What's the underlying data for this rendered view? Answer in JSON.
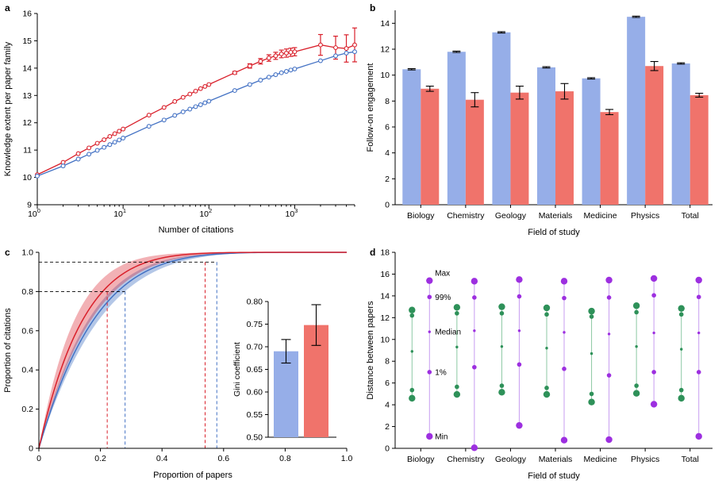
{
  "colors": {
    "red": "#d9202b",
    "blue": "#4472c4",
    "bar_blue": "#96aee8",
    "bar_red": "#f0736b",
    "green": "#2e9159",
    "purple": "#9d2fe0",
    "light_purple": "#c79cf0",
    "light_green": "#8cc9a4"
  },
  "chart_data": [
    {
      "panel": "a",
      "type": "line",
      "title": "",
      "xlabel": "Number of citations",
      "ylabel": "Knowledge extent per paper family",
      "xscale": "log",
      "xlim": [
        1,
        5000
      ],
      "ylim": [
        9,
        16
      ],
      "xticks": [
        1,
        10,
        100,
        1000
      ],
      "xtick_labels": [
        {
          "base": "10",
          "exp": "0"
        },
        {
          "base": "10",
          "exp": "1"
        },
        {
          "base": "10",
          "exp": "2"
        },
        {
          "base": "10",
          "exp": "3"
        }
      ],
      "yticks": [
        9,
        10,
        11,
        12,
        13,
        14,
        15,
        16
      ],
      "series": [
        {
          "name": "red",
          "color": "red",
          "x": [
            1,
            2,
            3,
            4,
            5,
            6,
            7,
            8,
            9,
            10,
            20,
            30,
            40,
            50,
            60,
            70,
            80,
            90,
            100,
            200,
            300,
            400,
            500,
            600,
            700,
            800,
            900,
            1000,
            2000,
            3000,
            4000,
            5000
          ],
          "values": [
            10.1,
            10.55,
            10.87,
            11.08,
            11.25,
            11.38,
            11.5,
            11.6,
            11.69,
            11.77,
            12.28,
            12.56,
            12.78,
            12.93,
            13.05,
            13.16,
            13.25,
            13.33,
            13.4,
            13.83,
            14.08,
            14.25,
            14.37,
            14.45,
            14.52,
            14.55,
            14.58,
            14.6,
            14.85,
            14.75,
            14.72,
            14.85
          ],
          "errors": [
            0,
            0,
            0,
            0,
            0,
            0,
            0,
            0,
            0,
            0,
            0,
            0,
            0,
            0,
            0,
            0,
            0,
            0,
            0,
            0.05,
            0.08,
            0.1,
            0.12,
            0.13,
            0.14,
            0.15,
            0.15,
            0.15,
            0.38,
            0.42,
            0.5,
            0.62
          ]
        },
        {
          "name": "blue",
          "color": "blue",
          "x": [
            1,
            2,
            3,
            4,
            5,
            6,
            7,
            8,
            9,
            10,
            20,
            30,
            40,
            50,
            60,
            70,
            80,
            90,
            100,
            200,
            300,
            400,
            500,
            600,
            700,
            800,
            900,
            1000,
            2000,
            3000,
            4000,
            5000
          ],
          "values": [
            10.05,
            10.42,
            10.67,
            10.85,
            10.99,
            11.1,
            11.2,
            11.29,
            11.37,
            11.44,
            11.87,
            12.1,
            12.27,
            12.4,
            12.5,
            12.59,
            12.66,
            12.73,
            12.79,
            13.18,
            13.4,
            13.56,
            13.67,
            13.76,
            13.83,
            13.88,
            13.93,
            13.97,
            14.27,
            14.45,
            14.55,
            14.6
          ]
        }
      ]
    },
    {
      "panel": "b",
      "type": "bar",
      "title": "",
      "xlabel": "Field of study",
      "ylabel": "Follow-on engagement",
      "ylim": [
        0,
        15
      ],
      "yticks": [
        0,
        2,
        4,
        6,
        8,
        10,
        12,
        14
      ],
      "categories": [
        "Biology",
        "Chemistry",
        "Geology",
        "Materials",
        "Medicine",
        "Physics",
        "Total"
      ],
      "series": [
        {
          "name": "blue",
          "color": "bar_blue",
          "values": [
            10.45,
            11.8,
            13.3,
            10.6,
            9.75,
            14.5,
            10.9
          ],
          "errors": [
            0.05,
            0.05,
            0.05,
            0.05,
            0.05,
            0.05,
            0.05
          ]
        },
        {
          "name": "red",
          "color": "bar_red",
          "values": [
            8.95,
            8.1,
            8.65,
            8.75,
            7.15,
            10.7,
            8.45
          ],
          "errors": [
            0.2,
            0.55,
            0.5,
            0.6,
            0.2,
            0.35,
            0.15
          ]
        }
      ]
    },
    {
      "panel": "c",
      "type": "line",
      "title": "",
      "xlabel": "Proportion of papers",
      "ylabel": "Proportion of citations",
      "xlim": [
        0,
        1
      ],
      "ylim": [
        0,
        1
      ],
      "xticks": [
        0,
        0.2,
        0.4,
        0.6,
        0.8,
        1.0
      ],
      "xtick_labels": [
        "0",
        "0.2",
        "0.4",
        "0.6",
        "0.8",
        "1.0"
      ],
      "yticks": [
        0,
        0.2,
        0.4,
        0.6,
        0.8,
        1.0
      ],
      "ytick_labels": [
        "0",
        "0.2",
        "0.4",
        "0.6",
        "0.8",
        "1.0"
      ],
      "series": [
        {
          "name": "red",
          "color": "red",
          "gini": 0.748
        },
        {
          "name": "blue",
          "color": "blue",
          "gini": 0.69
        }
      ],
      "reference_lines": [
        {
          "y": 0.8,
          "x_red": 0.222,
          "x_blue": 0.28
        },
        {
          "y": 0.95,
          "x_red": 0.54,
          "x_blue": 0.578
        }
      ],
      "inset": {
        "type": "bar",
        "ylabel": "Gini coefficient",
        "ylim": [
          0.5,
          0.8
        ],
        "yticks": [
          0.5,
          0.55,
          0.6,
          0.65,
          0.7,
          0.75,
          0.8
        ],
        "ytick_labels": [
          "0.50",
          "0.55",
          "0.60",
          "0.65",
          "0.70",
          "0.75",
          "0.80"
        ],
        "bars": [
          {
            "name": "blue",
            "color": "bar_blue",
            "value": 0.69,
            "error": 0.026
          },
          {
            "name": "red",
            "color": "bar_red",
            "value": 0.748,
            "error": 0.045
          }
        ]
      }
    },
    {
      "panel": "d",
      "type": "scatter",
      "title": "",
      "xlabel": "Field of study",
      "ylabel": "Distance between papers",
      "ylim": [
        0,
        18
      ],
      "yticks": [
        0,
        2,
        4,
        6,
        8,
        10,
        12,
        14,
        16,
        18
      ],
      "categories": [
        "Biology",
        "Chemistry",
        "Geology",
        "Materials",
        "Medicine",
        "Physics",
        "Total"
      ],
      "stat_labels": [
        "Max",
        "99%",
        "Median",
        "1%",
        "Min"
      ],
      "series": [
        {
          "name": "green",
          "color": "green",
          "max": [
            12.7,
            12.95,
            13.0,
            12.9,
            12.6,
            13.1,
            12.85
          ],
          "p99": [
            12.2,
            12.4,
            12.4,
            12.3,
            12.1,
            12.5,
            12.3
          ],
          "median": [
            8.9,
            9.3,
            9.35,
            9.2,
            8.7,
            9.35,
            9.1
          ],
          "p1": [
            5.35,
            5.65,
            5.75,
            5.55,
            5.0,
            5.75,
            5.35
          ],
          "min": [
            4.6,
            4.95,
            5.15,
            4.95,
            4.25,
            5.05,
            4.6
          ]
        },
        {
          "name": "purple",
          "color": "purple",
          "max": [
            15.4,
            15.35,
            15.5,
            15.35,
            15.45,
            15.6,
            15.45
          ],
          "p99": [
            13.9,
            13.85,
            13.95,
            13.8,
            13.85,
            14.05,
            13.9
          ],
          "median": [
            10.7,
            10.8,
            10.8,
            10.65,
            10.5,
            10.6,
            10.6
          ],
          "p1": [
            7.0,
            7.45,
            7.7,
            7.3,
            6.7,
            7.0,
            7.0
          ],
          "min": [
            1.1,
            0.05,
            2.1,
            0.75,
            0.8,
            4.05,
            1.1
          ]
        }
      ]
    }
  ]
}
